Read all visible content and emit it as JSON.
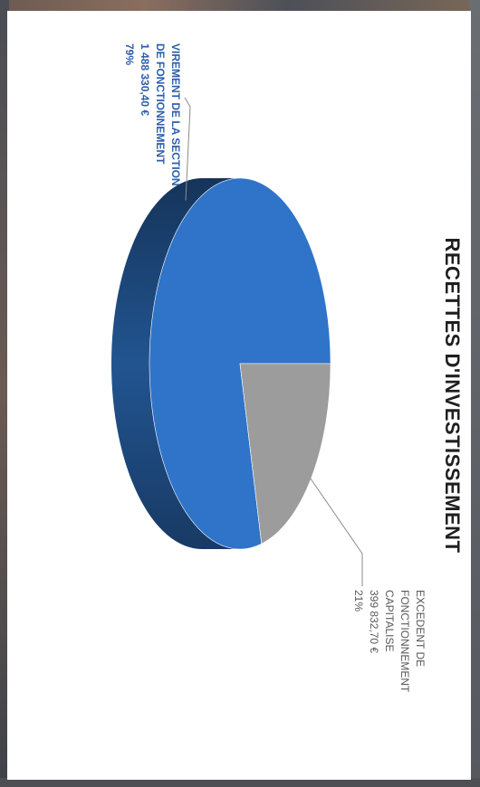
{
  "chart_data": {
    "type": "pie",
    "title": "RECETTES D'INVESTISSEMENT",
    "slices": [
      {
        "label_lines": [
          "VIREMENT DE LA SECTION",
          "DE FONCTIONNEMENT"
        ],
        "value_text": "1 488 330,40 €",
        "percent_text": "79%",
        "value": 1488330.4,
        "percent": 79,
        "color": "#2f74c8",
        "label_color": "#2c5ea8"
      },
      {
        "label_lines": [
          "EXCEDENT DE",
          "FONCTIONNEMENT",
          "CAPITALISE"
        ],
        "value_text": "399 832,70 €",
        "percent_text": "21%",
        "value": 399832.7,
        "percent": 21,
        "color": "#9c9c9c",
        "label_color": "#5a5a5a"
      }
    ]
  }
}
